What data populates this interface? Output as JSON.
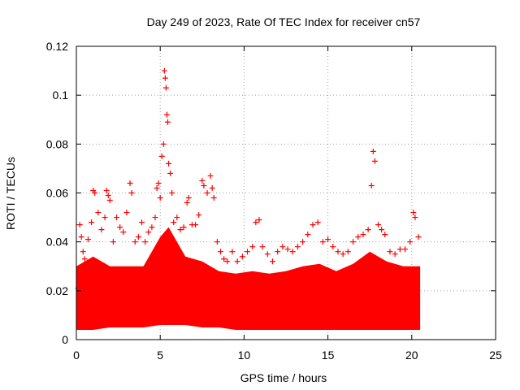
{
  "chart_data": {
    "type": "scatter",
    "title": "Day 249 of 2023, Rate Of TEC Index for receiver cn57",
    "xlabel": "GPS time / hours",
    "ylabel": "ROTI / TECUs",
    "xlim": [
      0,
      25
    ],
    "ylim": [
      0,
      0.12
    ],
    "x_ticks": [
      "0",
      "5",
      "10",
      "15",
      "20",
      "25"
    ],
    "y_ticks": [
      "0",
      "0.02",
      "0.04",
      "0.06",
      "0.08",
      "0.1",
      "0.12"
    ],
    "grid": true,
    "marker": "+",
    "color": "#ff0000",
    "series": [
      {
        "points": [
          [
            0.1,
            0.021
          ],
          [
            0.2,
            0.047
          ],
          [
            0.3,
            0.042
          ],
          [
            0.4,
            0.036
          ],
          [
            0.5,
            0.033
          ],
          [
            0.7,
            0.041
          ],
          [
            0.9,
            0.048
          ],
          [
            1.0,
            0.061
          ],
          [
            1.1,
            0.06
          ],
          [
            1.3,
            0.052
          ],
          [
            1.5,
            0.045
          ],
          [
            1.7,
            0.05
          ],
          [
            1.8,
            0.061
          ],
          [
            1.9,
            0.059
          ],
          [
            2.0,
            0.057
          ],
          [
            2.2,
            0.04
          ],
          [
            2.4,
            0.05
          ],
          [
            2.6,
            0.046
          ],
          [
            2.8,
            0.044
          ],
          [
            3.0,
            0.052
          ],
          [
            3.2,
            0.064
          ],
          [
            3.3,
            0.06
          ],
          [
            3.5,
            0.04
          ],
          [
            3.7,
            0.042
          ],
          [
            3.9,
            0.048
          ],
          [
            4.1,
            0.04
          ],
          [
            4.3,
            0.044
          ],
          [
            4.5,
            0.046
          ],
          [
            4.7,
            0.05
          ],
          [
            4.8,
            0.062
          ],
          [
            4.9,
            0.064
          ],
          [
            5.0,
            0.058
          ],
          [
            5.1,
            0.075
          ],
          [
            5.2,
            0.08
          ],
          [
            5.25,
            0.11
          ],
          [
            5.3,
            0.107
          ],
          [
            5.35,
            0.103
          ],
          [
            5.4,
            0.092
          ],
          [
            5.45,
            0.089
          ],
          [
            5.5,
            0.072
          ],
          [
            5.6,
            0.068
          ],
          [
            5.7,
            0.06
          ],
          [
            5.8,
            0.048
          ],
          [
            6.0,
            0.05
          ],
          [
            6.2,
            0.045
          ],
          [
            6.4,
            0.046
          ],
          [
            6.6,
            0.056
          ],
          [
            6.7,
            0.058
          ],
          [
            6.9,
            0.047
          ],
          [
            7.1,
            0.047
          ],
          [
            7.3,
            0.051
          ],
          [
            7.5,
            0.065
          ],
          [
            7.6,
            0.063
          ],
          [
            7.8,
            0.06
          ],
          [
            8.0,
            0.067
          ],
          [
            8.1,
            0.062
          ],
          [
            8.2,
            0.058
          ],
          [
            8.4,
            0.04
          ],
          [
            8.6,
            0.036
          ],
          [
            8.8,
            0.033
          ],
          [
            9.0,
            0.032
          ],
          [
            9.3,
            0.036
          ],
          [
            9.6,
            0.032
          ],
          [
            9.9,
            0.034
          ],
          [
            10.2,
            0.036
          ],
          [
            10.5,
            0.038
          ],
          [
            10.7,
            0.048
          ],
          [
            10.9,
            0.049
          ],
          [
            11.1,
            0.038
          ],
          [
            11.4,
            0.035
          ],
          [
            11.7,
            0.032
          ],
          [
            12.0,
            0.036
          ],
          [
            12.3,
            0.038
          ],
          [
            12.6,
            0.037
          ],
          [
            12.9,
            0.036
          ],
          [
            13.2,
            0.038
          ],
          [
            13.5,
            0.04
          ],
          [
            13.8,
            0.043
          ],
          [
            14.1,
            0.047
          ],
          [
            14.4,
            0.048
          ],
          [
            14.7,
            0.04
          ],
          [
            15.0,
            0.041
          ],
          [
            15.3,
            0.038
          ],
          [
            15.6,
            0.036
          ],
          [
            15.9,
            0.035
          ],
          [
            16.2,
            0.036
          ],
          [
            16.5,
            0.04
          ],
          [
            16.8,
            0.042
          ],
          [
            17.1,
            0.043
          ],
          [
            17.4,
            0.045
          ],
          [
            17.6,
            0.063
          ],
          [
            17.7,
            0.077
          ],
          [
            17.8,
            0.073
          ],
          [
            18.0,
            0.047
          ],
          [
            18.2,
            0.045
          ],
          [
            18.4,
            0.043
          ],
          [
            18.7,
            0.036
          ],
          [
            19.0,
            0.035
          ],
          [
            19.3,
            0.037
          ],
          [
            19.6,
            0.037
          ],
          [
            19.9,
            0.04
          ],
          [
            20.1,
            0.052
          ],
          [
            20.2,
            0.05
          ],
          [
            20.4,
            0.042
          ]
        ]
      }
    ],
    "band": {
      "x_start": 0,
      "x_end": 20.5,
      "profile": [
        {
          "x": 0.0,
          "lo": 0.004,
          "hi": 0.03
        },
        {
          "x": 1.0,
          "lo": 0.004,
          "hi": 0.034
        },
        {
          "x": 2.0,
          "lo": 0.005,
          "hi": 0.03
        },
        {
          "x": 3.0,
          "lo": 0.005,
          "hi": 0.03
        },
        {
          "x": 4.0,
          "lo": 0.005,
          "hi": 0.03
        },
        {
          "x": 5.0,
          "lo": 0.006,
          "hi": 0.042
        },
        {
          "x": 5.5,
          "lo": 0.006,
          "hi": 0.046
        },
        {
          "x": 6.5,
          "lo": 0.006,
          "hi": 0.034
        },
        {
          "x": 7.5,
          "lo": 0.005,
          "hi": 0.032
        },
        {
          "x": 8.5,
          "lo": 0.005,
          "hi": 0.028
        },
        {
          "x": 9.5,
          "lo": 0.004,
          "hi": 0.027
        },
        {
          "x": 10.5,
          "lo": 0.004,
          "hi": 0.028
        },
        {
          "x": 11.5,
          "lo": 0.004,
          "hi": 0.027
        },
        {
          "x": 12.5,
          "lo": 0.004,
          "hi": 0.028
        },
        {
          "x": 13.5,
          "lo": 0.004,
          "hi": 0.03
        },
        {
          "x": 14.5,
          "lo": 0.004,
          "hi": 0.031
        },
        {
          "x": 15.5,
          "lo": 0.004,
          "hi": 0.028
        },
        {
          "x": 16.5,
          "lo": 0.004,
          "hi": 0.031
        },
        {
          "x": 17.5,
          "lo": 0.004,
          "hi": 0.036
        },
        {
          "x": 18.5,
          "lo": 0.004,
          "hi": 0.032
        },
        {
          "x": 19.5,
          "lo": 0.004,
          "hi": 0.03
        },
        {
          "x": 20.5,
          "lo": 0.004,
          "hi": 0.03
        }
      ]
    }
  }
}
